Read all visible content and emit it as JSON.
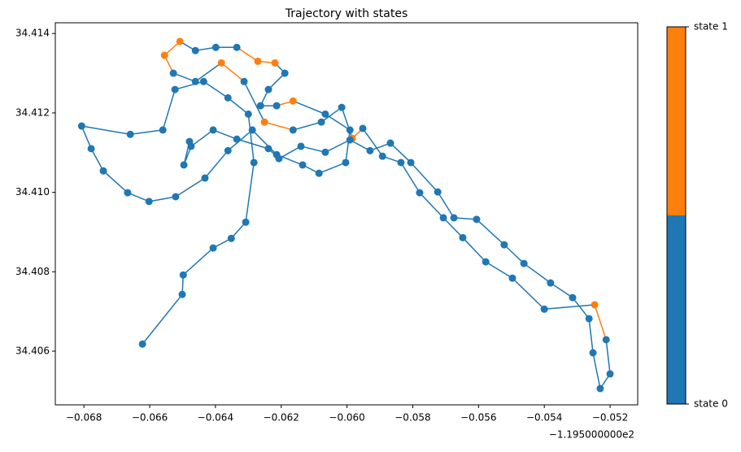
{
  "chart_data": {
    "type": "line",
    "title": "Trajectory with states",
    "x": [
      -0.06622,
      -0.06501,
      -0.06498,
      -0.06407,
      -0.06352,
      -0.06308,
      -0.06283,
      -0.063,
      -0.06362,
      -0.06436,
      -0.06523,
      -0.0656,
      -0.06659,
      -0.06807,
      -0.06778,
      -0.06741,
      -0.06667,
      -0.06602,
      -0.06521,
      -0.06432,
      -0.06362,
      -0.06288,
      -0.06214,
      -0.06135,
      -0.06085,
      -0.06004,
      -0.05991,
      -0.06066,
      -0.06164,
      -0.06214,
      -0.06263,
      -0.06239,
      -0.06189,
      -0.06219,
      -0.06271,
      -0.06335,
      -0.06399,
      -0.06461,
      -0.06508,
      -0.06555,
      -0.06528,
      -0.06461,
      -0.06382,
      -0.06313,
      -0.06251,
      -0.06164,
      -0.06078,
      -0.06016,
      -0.05984,
      -0.05952,
      -0.05892,
      -0.05836,
      -0.05779,
      -0.05707,
      -0.05648,
      -0.05578,
      -0.05497,
      -0.054,
      -0.05247,
      -0.05212,
      -0.052,
      -0.0523,
      -0.05252,
      -0.05264,
      -0.05314,
      -0.05381,
      -0.05462,
      -0.05522,
      -0.05606,
      -0.05675,
      -0.05724,
      -0.05806,
      -0.05868,
      -0.0593,
      -0.05991,
      -0.06066,
      -0.0614,
      -0.06207,
      -0.06239,
      -0.06335,
      -0.06407,
      -0.06474,
      -0.06496,
      -0.06479
    ],
    "y": [
      34.40618,
      34.40743,
      34.40792,
      34.4086,
      34.40884,
      34.40925,
      34.41075,
      34.41197,
      34.41238,
      34.41279,
      34.41259,
      34.41157,
      34.41146,
      34.41167,
      34.4111,
      34.41054,
      34.40999,
      34.40977,
      34.40989,
      34.41036,
      34.41105,
      34.41157,
      34.41095,
      34.41069,
      34.41048,
      34.41075,
      34.41157,
      34.41197,
      34.4123,
      34.41218,
      34.41218,
      34.41259,
      34.413,
      34.41326,
      34.4133,
      34.41365,
      34.41365,
      34.41357,
      34.4138,
      34.41345,
      34.413,
      34.41279,
      34.41326,
      34.41279,
      34.41177,
      34.41157,
      34.41177,
      34.41214,
      34.41136,
      34.41161,
      34.41091,
      34.41075,
      34.40999,
      34.40936,
      34.40886,
      34.40825,
      34.40784,
      34.40706,
      34.40717,
      34.40629,
      34.40543,
      34.40506,
      34.40596,
      34.40682,
      34.40735,
      34.40772,
      34.40821,
      34.40868,
      34.40932,
      34.40936,
      34.41001,
      34.41075,
      34.41124,
      34.41105,
      34.41132,
      34.41101,
      34.41116,
      34.41085,
      34.4111,
      34.41134,
      34.41157,
      34.41116,
      34.41069,
      34.41128
    ],
    "states": [
      0,
      0,
      0,
      0,
      0,
      0,
      0,
      0,
      0,
      0,
      0,
      0,
      0,
      0,
      0,
      0,
      0,
      0,
      0,
      0,
      0,
      0,
      0,
      0,
      0,
      0,
      0,
      0,
      1,
      0,
      0,
      0,
      0,
      1,
      1,
      0,
      0,
      0,
      1,
      1,
      0,
      0,
      1,
      0,
      1,
      0,
      0,
      0,
      1,
      0,
      0,
      0,
      0,
      0,
      0,
      0,
      0,
      0,
      1,
      0,
      0,
      0,
      0,
      0,
      0,
      0,
      0,
      0,
      0,
      0,
      0,
      0,
      0,
      0,
      0,
      0,
      0,
      0,
      0,
      0,
      0,
      0,
      0,
      0
    ],
    "state_colors": [
      "#1f77b4",
      "#ff7f0e"
    ],
    "state_labels": [
      "state 0",
      "state 1"
    ],
    "xlim": [
      -0.06887,
      -0.05116
    ],
    "ylim": [
      34.40465,
      34.41427
    ],
    "xticks": [
      {
        "value": -0.068,
        "label": "−0.068"
      },
      {
        "value": -0.066,
        "label": "−0.066"
      },
      {
        "value": -0.064,
        "label": "−0.064"
      },
      {
        "value": -0.062,
        "label": "−0.062"
      },
      {
        "value": -0.06,
        "label": "−0.060"
      },
      {
        "value": -0.058,
        "label": "−0.058"
      },
      {
        "value": -0.056,
        "label": "−0.056"
      },
      {
        "value": -0.054,
        "label": "−0.054"
      },
      {
        "value": -0.052,
        "label": "−0.052"
      }
    ],
    "yticks": [
      34.406,
      34.408,
      {
        "value": 34.41,
        "label": "34.410"
      },
      34.412,
      34.414
    ],
    "x_offset_label": "−1.195000000e2"
  }
}
